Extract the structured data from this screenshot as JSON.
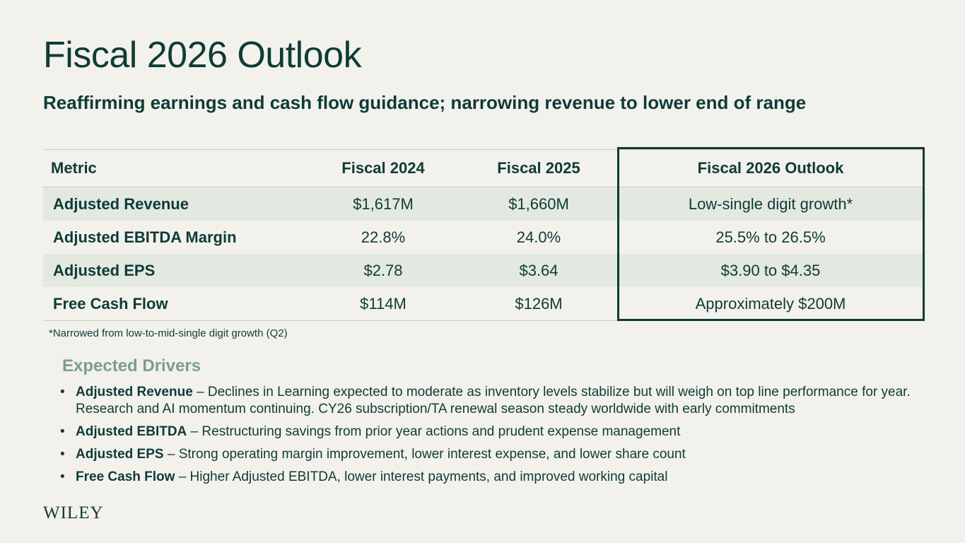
{
  "title": "Fiscal 2026 Outlook",
  "subtitle": "Reaffirming earnings and cash flow guidance; narrowing revenue to lower end of range",
  "table": {
    "headers": [
      "Metric",
      "Fiscal 2024",
      "Fiscal 2025",
      "Fiscal 2026 Outlook"
    ],
    "rows": [
      [
        "Adjusted Revenue",
        "$1,617M",
        "$1,660M",
        "Low-single digit growth*"
      ],
      [
        "Adjusted EBITDA Margin",
        "22.8%",
        "24.0%",
        "25.5% to 26.5%"
      ],
      [
        "Adjusted EPS",
        "$2.78",
        "$3.64",
        "$3.90 to $4.35"
      ],
      [
        "Free Cash Flow",
        "$114M",
        "$126M",
        "Approximately $200M"
      ]
    ]
  },
  "footnote": "*Narrowed from low-to-mid-single digit growth (Q2)",
  "drivers": {
    "title": "Expected Drivers",
    "items": [
      {
        "label": "Adjusted Revenue",
        "text": " – Declines in Learning expected to moderate as inventory levels stabilize but will weigh on top line performance for year.  Research and AI momentum continuing.  CY26 subscription/TA renewal season steady worldwide with early commitments"
      },
      {
        "label": "Adjusted EBITDA",
        "text": " – Restructuring savings from prior year actions and prudent expense management"
      },
      {
        "label": "Adjusted EPS",
        "text": " – Strong operating margin improvement, lower interest expense, and lower share count"
      },
      {
        "label": "Free Cash Flow",
        "text": " – Higher Adjusted EBITDA, lower interest payments, and improved working capital"
      }
    ]
  },
  "logo": "WILEY",
  "bullet_glyph": "•"
}
